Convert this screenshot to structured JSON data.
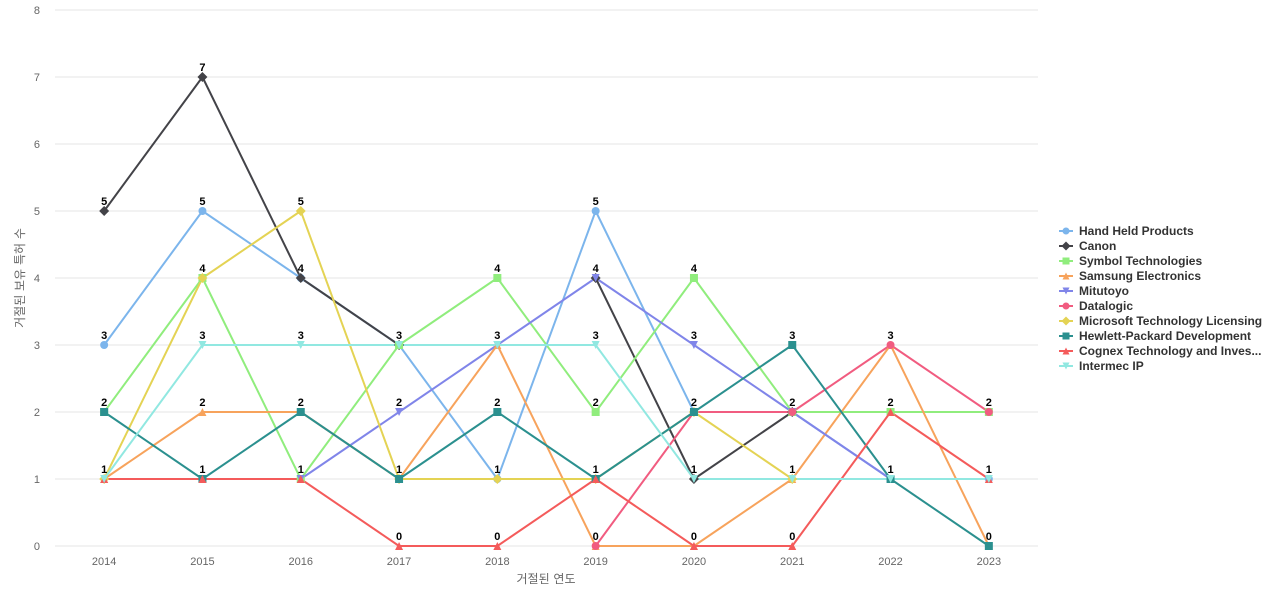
{
  "chart_data": {
    "type": "line",
    "title": "",
    "xlabel": "거절된 연도",
    "ylabel": "거절된 보유 특허 수",
    "x": [
      "2014",
      "2015",
      "2016",
      "2017",
      "2018",
      "2019",
      "2020",
      "2021",
      "2022",
      "2023"
    ],
    "ylim": [
      0,
      8
    ],
    "yticks": [
      0,
      1,
      2,
      3,
      4,
      5,
      6,
      7,
      8
    ],
    "grid": true,
    "legend_position": "right",
    "series": [
      {
        "name": "Hand Held Products",
        "color": "#7cb5ec",
        "marker": "circle",
        "values": [
          3,
          5,
          4,
          3,
          1,
          5,
          2,
          2,
          1,
          1
        ]
      },
      {
        "name": "Canon",
        "color": "#434348",
        "marker": "diamond",
        "values": [
          5,
          7,
          4,
          3,
          null,
          4,
          1,
          2,
          null,
          null
        ]
      },
      {
        "name": "Symbol Technologies",
        "color": "#90ed7d",
        "marker": "square",
        "values": [
          2,
          4,
          1,
          3,
          4,
          2,
          4,
          2,
          2,
          2
        ]
      },
      {
        "name": "Samsung Electronics",
        "color": "#f7a35c",
        "marker": "triangle",
        "values": [
          1,
          2,
          2,
          1,
          3,
          0,
          0,
          1,
          3,
          0
        ]
      },
      {
        "name": "Mitutoyo",
        "color": "#8085e9",
        "marker": "triangle-down",
        "values": [
          null,
          null,
          1,
          2,
          3,
          4,
          3,
          2,
          1,
          null
        ]
      },
      {
        "name": "Datalogic",
        "color": "#f15c80",
        "marker": "circle",
        "values": [
          null,
          null,
          null,
          null,
          null,
          0,
          2,
          2,
          3,
          2
        ]
      },
      {
        "name": "Microsoft Technology Licensing",
        "color": "#e4d354",
        "marker": "diamond",
        "values": [
          1,
          4,
          5,
          1,
          1,
          1,
          2,
          1,
          null,
          null
        ]
      },
      {
        "name": "Hewlett-Packard Development",
        "color": "#2b908f",
        "marker": "square",
        "values": [
          2,
          1,
          2,
          1,
          2,
          1,
          2,
          3,
          1,
          0
        ]
      },
      {
        "name": "Cognex Technology and Inves...",
        "color": "#f45b5b",
        "marker": "triangle",
        "values": [
          1,
          1,
          1,
          0,
          0,
          1,
          0,
          0,
          2,
          1
        ]
      },
      {
        "name": "Intermec IP",
        "color": "#91e8e1",
        "marker": "triangle-down",
        "values": [
          1,
          3,
          3,
          3,
          3,
          3,
          1,
          1,
          1,
          1
        ]
      }
    ],
    "data_labels": [
      {
        "x": "2014",
        "y": 5,
        "text": "5"
      },
      {
        "x": "2014",
        "y": 3,
        "text": "3"
      },
      {
        "x": "2014",
        "y": 2,
        "text": "2"
      },
      {
        "x": "2014",
        "y": 1,
        "text": "1"
      },
      {
        "x": "2015",
        "y": 7,
        "text": "7"
      },
      {
        "x": "2015",
        "y": 5,
        "text": "5"
      },
      {
        "x": "2015",
        "y": 4,
        "text": "4"
      },
      {
        "x": "2015",
        "y": 3,
        "text": "3"
      },
      {
        "x": "2015",
        "y": 2,
        "text": "2"
      },
      {
        "x": "2015",
        "y": 1,
        "text": "1"
      },
      {
        "x": "2016",
        "y": 5,
        "text": "5"
      },
      {
        "x": "2016",
        "y": 4,
        "text": "4"
      },
      {
        "x": "2016",
        "y": 3,
        "text": "3"
      },
      {
        "x": "2016",
        "y": 2,
        "text": "2"
      },
      {
        "x": "2016",
        "y": 1,
        "text": "1"
      },
      {
        "x": "2017",
        "y": 3,
        "text": "3"
      },
      {
        "x": "2017",
        "y": 2,
        "text": "2"
      },
      {
        "x": "2017",
        "y": 1,
        "text": "1"
      },
      {
        "x": "2017",
        "y": 0,
        "text": "0"
      },
      {
        "x": "2018",
        "y": 4,
        "text": "4"
      },
      {
        "x": "2018",
        "y": 3,
        "text": "3"
      },
      {
        "x": "2018",
        "y": 2,
        "text": "2"
      },
      {
        "x": "2018",
        "y": 1,
        "text": "1"
      },
      {
        "x": "2018",
        "y": 0,
        "text": "0"
      },
      {
        "x": "2019",
        "y": 5,
        "text": "5"
      },
      {
        "x": "2019",
        "y": 4,
        "text": "4"
      },
      {
        "x": "2019",
        "y": 3,
        "text": "3"
      },
      {
        "x": "2019",
        "y": 2,
        "text": "2"
      },
      {
        "x": "2019",
        "y": 1,
        "text": "1"
      },
      {
        "x": "2019",
        "y": 0,
        "text": "0"
      },
      {
        "x": "2020",
        "y": 4,
        "text": "4"
      },
      {
        "x": "2020",
        "y": 3,
        "text": "3"
      },
      {
        "x": "2020",
        "y": 2,
        "text": "2"
      },
      {
        "x": "2020",
        "y": 1,
        "text": "1"
      },
      {
        "x": "2020",
        "y": 0,
        "text": "0"
      },
      {
        "x": "2021",
        "y": 3,
        "text": "3"
      },
      {
        "x": "2021",
        "y": 2,
        "text": "2"
      },
      {
        "x": "2021",
        "y": 1,
        "text": "1"
      },
      {
        "x": "2021",
        "y": 0,
        "text": "0"
      },
      {
        "x": "2022",
        "y": 3,
        "text": "3"
      },
      {
        "x": "2022",
        "y": 2,
        "text": "2"
      },
      {
        "x": "2022",
        "y": 1,
        "text": "1"
      },
      {
        "x": "2023",
        "y": 2,
        "text": "2"
      },
      {
        "x": "2023",
        "y": 1,
        "text": "1"
      },
      {
        "x": "2023",
        "y": 0,
        "text": "0"
      }
    ]
  }
}
